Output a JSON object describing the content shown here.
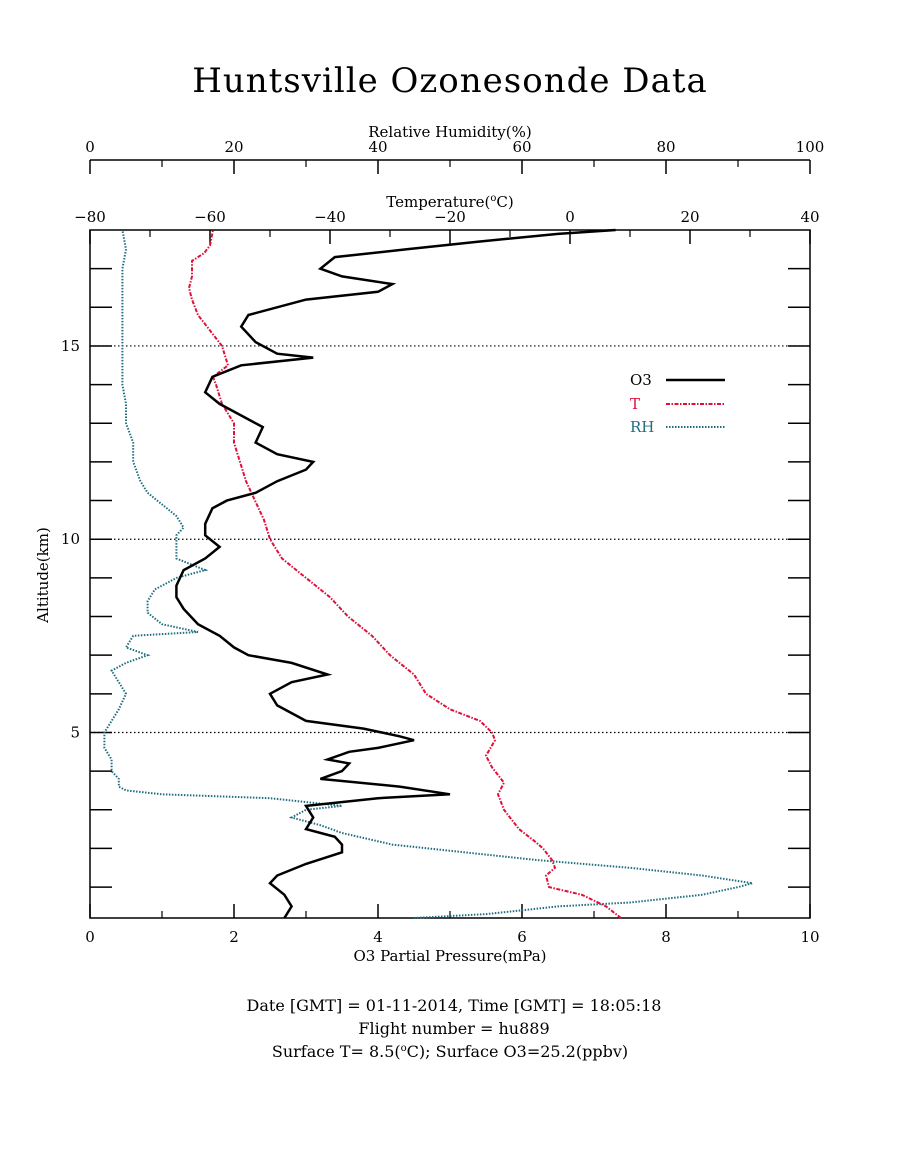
{
  "chart_data": {
    "type": "line",
    "title": "Huntsville Ozonesonde Data",
    "axes": {
      "ozone": {
        "label": "O3 Partial Pressure(mPa)",
        "range": [
          0,
          10
        ],
        "ticks": [
          "0",
          "2",
          "4",
          "6",
          "8",
          "10"
        ]
      },
      "temperature": {
        "label": "Temperature(",
        "label_sup": "o",
        "label_tail": "C)",
        "range": [
          -80,
          40
        ],
        "ticks": [
          "−80",
          "−60",
          "−40",
          "−20",
          "0",
          "20",
          "40"
        ]
      },
      "humidity": {
        "label": "Relative Humidity(%)",
        "range": [
          0,
          100
        ],
        "ticks": [
          "0",
          "20",
          "40",
          "60",
          "80",
          "100"
        ]
      },
      "altitude": {
        "label": "Altitude(km)",
        "range": [
          0.2,
          18.0
        ],
        "ticks": [
          "5",
          "10",
          "15"
        ],
        "tick_values": [
          5,
          10,
          15
        ]
      }
    },
    "grid": {
      "horizontal_dotted_at": [
        5,
        10,
        15
      ]
    },
    "legend": {
      "placement": "right",
      "entries": [
        {
          "label": "O3",
          "color": "#000000",
          "style": "solid"
        },
        {
          "label": "T",
          "color": "#e0103a",
          "style": "dash-dot"
        },
        {
          "label": "RH",
          "color": "#1f6e80",
          "style": "dotted"
        }
      ]
    },
    "series": [
      {
        "name": "O3",
        "axis": "ozone",
        "color": "#000000",
        "points": [
          [
            2.7,
            0.2
          ],
          [
            2.8,
            0.5
          ],
          [
            2.7,
            0.8
          ],
          [
            2.5,
            1.1
          ],
          [
            2.6,
            1.3
          ],
          [
            3.0,
            1.6
          ],
          [
            3.5,
            1.9
          ],
          [
            3.5,
            2.1
          ],
          [
            3.4,
            2.3
          ],
          [
            3.0,
            2.5
          ],
          [
            3.1,
            2.8
          ],
          [
            3.0,
            3.1
          ],
          [
            4.0,
            3.3
          ],
          [
            5.0,
            3.4
          ],
          [
            4.3,
            3.6
          ],
          [
            3.2,
            3.8
          ],
          [
            3.5,
            4.0
          ],
          [
            3.6,
            4.2
          ],
          [
            3.3,
            4.3
          ],
          [
            3.6,
            4.5
          ],
          [
            4.0,
            4.6
          ],
          [
            4.5,
            4.8
          ],
          [
            4.3,
            4.9
          ],
          [
            3.8,
            5.1
          ],
          [
            3.0,
            5.3
          ],
          [
            2.8,
            5.5
          ],
          [
            2.6,
            5.7
          ],
          [
            2.5,
            6.0
          ],
          [
            2.8,
            6.3
          ],
          [
            3.3,
            6.5
          ],
          [
            2.8,
            6.8
          ],
          [
            2.2,
            7.0
          ],
          [
            2.0,
            7.2
          ],
          [
            1.8,
            7.5
          ],
          [
            1.5,
            7.8
          ],
          [
            1.3,
            8.2
          ],
          [
            1.2,
            8.5
          ],
          [
            1.2,
            8.8
          ],
          [
            1.3,
            9.2
          ],
          [
            1.6,
            9.5
          ],
          [
            1.8,
            9.8
          ],
          [
            1.6,
            10.1
          ],
          [
            1.6,
            10.4
          ],
          [
            1.7,
            10.8
          ],
          [
            1.9,
            11.0
          ],
          [
            2.3,
            11.2
          ],
          [
            2.6,
            11.5
          ],
          [
            3.0,
            11.8
          ],
          [
            3.1,
            12.0
          ],
          [
            2.6,
            12.2
          ],
          [
            2.3,
            12.5
          ],
          [
            2.4,
            12.9
          ],
          [
            2.1,
            13.2
          ],
          [
            1.8,
            13.5
          ],
          [
            1.6,
            13.8
          ],
          [
            1.7,
            14.2
          ],
          [
            2.1,
            14.5
          ],
          [
            3.1,
            14.7
          ],
          [
            2.6,
            14.8
          ],
          [
            2.3,
            15.1
          ],
          [
            2.1,
            15.5
          ],
          [
            2.2,
            15.8
          ],
          [
            3.0,
            16.2
          ],
          [
            4.0,
            16.4
          ],
          [
            4.2,
            16.6
          ],
          [
            3.5,
            16.8
          ],
          [
            3.2,
            17.0
          ],
          [
            3.4,
            17.3
          ],
          [
            4.4,
            17.5
          ],
          [
            5.4,
            17.7
          ],
          [
            6.5,
            17.9
          ],
          [
            7.3,
            18.0
          ]
        ]
      },
      {
        "name": "T",
        "axis": "temperature",
        "color": "#e0103a",
        "points": [
          [
            8.5,
            0.2
          ],
          [
            6.0,
            0.5
          ],
          [
            2.0,
            0.8
          ],
          [
            -3.5,
            1.0
          ],
          [
            -4.0,
            1.3
          ],
          [
            -2.5,
            1.5
          ],
          [
            -3.0,
            1.7
          ],
          [
            -4.5,
            2.0
          ],
          [
            -6.0,
            2.2
          ],
          [
            -8.5,
            2.5
          ],
          [
            -11.0,
            3.0
          ],
          [
            -12.0,
            3.4
          ],
          [
            -11.0,
            3.7
          ],
          [
            -13.0,
            4.1
          ],
          [
            -14.0,
            4.4
          ],
          [
            -12.5,
            4.8
          ],
          [
            -13.0,
            5.0
          ],
          [
            -15.0,
            5.3
          ],
          [
            -20.0,
            5.6
          ],
          [
            -24.0,
            6.0
          ],
          [
            -26.0,
            6.5
          ],
          [
            -30.0,
            7.0
          ],
          [
            -33.0,
            7.5
          ],
          [
            -37.0,
            8.0
          ],
          [
            -40.0,
            8.5
          ],
          [
            -44.0,
            9.0
          ],
          [
            -48.0,
            9.5
          ],
          [
            -50.0,
            10.0
          ],
          [
            -51.0,
            10.5
          ],
          [
            -52.5,
            11.0
          ],
          [
            -54.0,
            11.5
          ],
          [
            -55.0,
            12.0
          ],
          [
            -56.0,
            12.5
          ],
          [
            -56.0,
            13.0
          ],
          [
            -58.0,
            13.5
          ],
          [
            -59.0,
            14.0
          ],
          [
            -59.5,
            14.2
          ],
          [
            -57.0,
            14.5
          ],
          [
            -58.0,
            15.0
          ],
          [
            -60.0,
            15.4
          ],
          [
            -62.0,
            15.8
          ],
          [
            -63.0,
            16.2
          ],
          [
            -63.5,
            16.5
          ],
          [
            -63.0,
            16.8
          ],
          [
            -63.0,
            17.2
          ],
          [
            -61.0,
            17.4
          ],
          [
            -60.0,
            17.6
          ],
          [
            -59.5,
            18.0
          ]
        ]
      },
      {
        "name": "RH",
        "axis": "humidity",
        "color": "#1f6e80",
        "points": [
          [
            45,
            0.2
          ],
          [
            55,
            0.3
          ],
          [
            60,
            0.4
          ],
          [
            65,
            0.5
          ],
          [
            75,
            0.6
          ],
          [
            85,
            0.8
          ],
          [
            90,
            1.0
          ],
          [
            92,
            1.1
          ],
          [
            85,
            1.3
          ],
          [
            75,
            1.5
          ],
          [
            62,
            1.7
          ],
          [
            52,
            1.9
          ],
          [
            42,
            2.1
          ],
          [
            35,
            2.4
          ],
          [
            32,
            2.6
          ],
          [
            28,
            2.8
          ],
          [
            30,
            3.0
          ],
          [
            35,
            3.1
          ],
          [
            25,
            3.3
          ],
          [
            10,
            3.4
          ],
          [
            5,
            3.5
          ],
          [
            4,
            3.6
          ],
          [
            4,
            3.8
          ],
          [
            3,
            4.0
          ],
          [
            3,
            4.3
          ],
          [
            2,
            4.6
          ],
          [
            2,
            5.0
          ],
          [
            3,
            5.3
          ],
          [
            4,
            5.6
          ],
          [
            5,
            6.0
          ],
          [
            4,
            6.3
          ],
          [
            3,
            6.6
          ],
          [
            5,
            6.8
          ],
          [
            8,
            7.0
          ],
          [
            5,
            7.2
          ],
          [
            6,
            7.5
          ],
          [
            15,
            7.6
          ],
          [
            10,
            7.8
          ],
          [
            8,
            8.1
          ],
          [
            8,
            8.4
          ],
          [
            9,
            8.7
          ],
          [
            12,
            9.0
          ],
          [
            16,
            9.2
          ],
          [
            12,
            9.5
          ],
          [
            12,
            9.8
          ],
          [
            12,
            10.1
          ],
          [
            13,
            10.3
          ],
          [
            12,
            10.6
          ],
          [
            10,
            10.9
          ],
          [
            8,
            11.2
          ],
          [
            7,
            11.5
          ],
          [
            6,
            12.0
          ],
          [
            6,
            12.5
          ],
          [
            5,
            13.0
          ],
          [
            5,
            13.5
          ],
          [
            4.5,
            14.0
          ],
          [
            4.5,
            14.5
          ],
          [
            4.5,
            15.0
          ],
          [
            4.5,
            15.5
          ],
          [
            4.5,
            16.0
          ],
          [
            4.5,
            16.5
          ],
          [
            4.5,
            17.0
          ],
          [
            5,
            17.5
          ],
          [
            4.5,
            18.0
          ]
        ]
      }
    ],
    "footer": [
      "Date [GMT] = 01-11-2014,  Time [GMT] = 18:05:18",
      "Flight number = hu889",
      "Surface T= 8.5(",
      "C); Surface O3=25.2(ppbv)"
    ],
    "footer_sup": "o"
  }
}
